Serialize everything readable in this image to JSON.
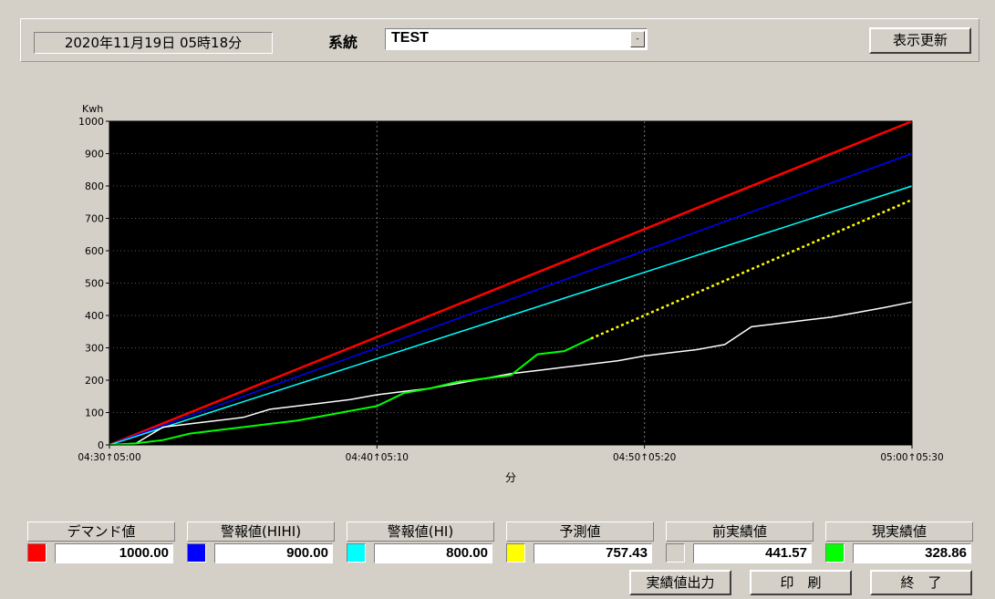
{
  "header": {
    "datetime": "2020年11月19日 05時18分",
    "system_label": "系統",
    "system_value": "TEST",
    "dropdown_arrow": "-",
    "refresh_button": "表示更新"
  },
  "chart_data": {
    "type": "line",
    "ylabel": "Kwh",
    "xlabel": "分",
    "ylim": [
      0,
      1000
    ],
    "yticks": [
      0,
      100,
      200,
      300,
      400,
      500,
      600,
      700,
      800,
      900,
      1000
    ],
    "xlim": [
      0,
      30
    ],
    "xticks": [
      {
        "x": 0,
        "label": "04:30↑05:00"
      },
      {
        "x": 10,
        "label": "04:40↑05:10"
      },
      {
        "x": 20,
        "label": "04:50↑05:20"
      },
      {
        "x": 30,
        "label": "05:00↑05:30"
      }
    ],
    "background": "#000000",
    "grid": true,
    "series": [
      {
        "name": "デマンド値",
        "color": "#ff0000",
        "dashed": false,
        "points": [
          [
            0,
            0
          ],
          [
            30,
            1000
          ]
        ]
      },
      {
        "name": "警報値(HIHI)",
        "color": "#0000ff",
        "dashed": false,
        "points": [
          [
            0,
            0
          ],
          [
            30,
            900
          ]
        ]
      },
      {
        "name": "警報値(HI)",
        "color": "#00ffff",
        "dashed": false,
        "points": [
          [
            0,
            0
          ],
          [
            30,
            800
          ]
        ]
      },
      {
        "name": "予測値",
        "color": "#ffff00",
        "dashed": true,
        "points": [
          [
            18,
            328.86
          ],
          [
            30,
            757.43
          ]
        ]
      },
      {
        "name": "前実績値",
        "color": "#ffffff",
        "dashed": false,
        "points": [
          [
            0,
            0
          ],
          [
            1,
            5
          ],
          [
            2,
            55
          ],
          [
            3,
            65
          ],
          [
            4,
            75
          ],
          [
            5,
            85
          ],
          [
            6,
            110
          ],
          [
            7,
            120
          ],
          [
            8,
            130
          ],
          [
            9,
            140
          ],
          [
            10,
            155
          ],
          [
            11,
            165
          ],
          [
            12,
            175
          ],
          [
            13,
            190
          ],
          [
            14,
            205
          ],
          [
            15,
            220
          ],
          [
            16,
            230
          ],
          [
            17,
            240
          ],
          [
            18,
            250
          ],
          [
            19,
            260
          ],
          [
            20,
            275
          ],
          [
            21,
            285
          ],
          [
            22,
            295
          ],
          [
            23,
            310
          ],
          [
            24,
            365
          ],
          [
            25,
            375
          ],
          [
            26,
            385
          ],
          [
            27,
            395
          ],
          [
            28,
            410
          ],
          [
            29,
            425
          ],
          [
            30,
            441.57
          ]
        ]
      },
      {
        "name": "現実績値",
        "color": "#00ff00",
        "dashed": false,
        "points": [
          [
            0,
            0
          ],
          [
            1,
            5
          ],
          [
            2,
            15
          ],
          [
            3,
            35
          ],
          [
            4,
            45
          ],
          [
            5,
            55
          ],
          [
            6,
            65
          ],
          [
            7,
            75
          ],
          [
            8,
            90
          ],
          [
            9,
            105
          ],
          [
            10,
            120
          ],
          [
            11,
            160
          ],
          [
            12,
            175
          ],
          [
            13,
            195
          ],
          [
            14,
            205
          ],
          [
            15,
            215
          ],
          [
            16,
            280
          ],
          [
            17,
            290
          ],
          [
            18,
            328.86
          ]
        ]
      }
    ]
  },
  "legend": [
    {
      "label": "デマンド値",
      "color": "#ff0000",
      "value": "1000.00"
    },
    {
      "label": "警報値(HIHI)",
      "color": "#0000ff",
      "value": "900.00"
    },
    {
      "label": "警報値(HI)",
      "color": "#00ffff",
      "value": "800.00"
    },
    {
      "label": "予測値",
      "color": "#ffff00",
      "value": "757.43"
    },
    {
      "label": "前実績値",
      "color": "#d4d0c8",
      "value": "441.57"
    },
    {
      "label": "現実績値",
      "color": "#00ff00",
      "value": "328.86"
    }
  ],
  "footer": {
    "export_button": "実績値出力",
    "print_button": "印　刷",
    "exit_button": "終　了"
  }
}
